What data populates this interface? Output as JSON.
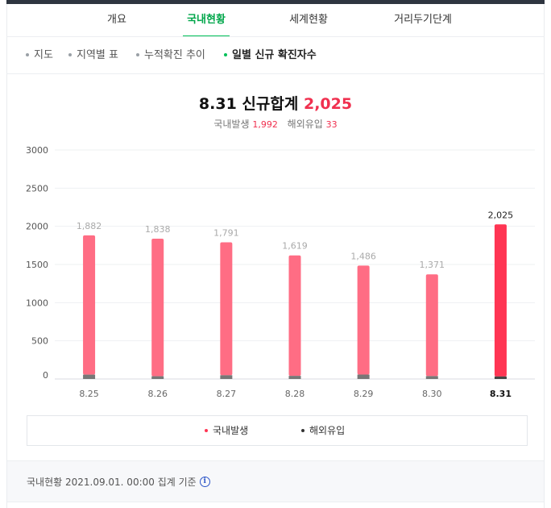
{
  "tabs": [
    {
      "label": "개요",
      "active": false
    },
    {
      "label": "국내현황",
      "active": true
    },
    {
      "label": "세계현황",
      "active": false
    },
    {
      "label": "거리두기단계",
      "active": false
    }
  ],
  "subtabs": [
    {
      "label": "지도",
      "active": false
    },
    {
      "label": "지역별 표",
      "active": false
    },
    {
      "label": "누적확진 추이",
      "active": false
    },
    {
      "label": "일별 신규 확진자수",
      "active": true
    }
  ],
  "summary": {
    "date": "8.31",
    "label": "신규합계",
    "total": "2,025",
    "domestic_label": "국내발생",
    "domestic_value": "1,992",
    "overseas_label": "해외유입",
    "overseas_value": "33"
  },
  "chart_data": {
    "type": "bar",
    "stacked": true,
    "categories": [
      "8.25",
      "8.26",
      "8.27",
      "8.28",
      "8.29",
      "8.30",
      "8.31"
    ],
    "highlight_category": "8.31",
    "totals": [
      1882,
      1838,
      1791,
      1619,
      1486,
      1371,
      2025
    ],
    "total_labels": [
      "1,882",
      "1,838",
      "1,791",
      "1,619",
      "1,486",
      "1,371",
      "2,025"
    ],
    "series": [
      {
        "name": "국내발생",
        "values": [
          1825,
          1802,
          1742,
          1578,
          1428,
          1333,
          1992
        ]
      },
      {
        "name": "해외유입",
        "values": [
          57,
          36,
          49,
          41,
          58,
          38,
          33
        ]
      }
    ],
    "ylim": [
      0,
      3000
    ],
    "yticks": [
      0,
      500,
      1000,
      1500,
      2000,
      2500,
      3000
    ],
    "grid": true,
    "legend_position": "bottom"
  },
  "colors": {
    "domestic": "#ff6d84",
    "domestic_highlight": "#ff3553",
    "overseas": "#777777",
    "overseas_highlight": "#444444",
    "accent_green": "#00c058",
    "highlight_red": "#f0304f"
  },
  "footer": {
    "text": "국내현황 2021.09.01. 00:00 집계 기준",
    "info_icon": "info-icon"
  }
}
